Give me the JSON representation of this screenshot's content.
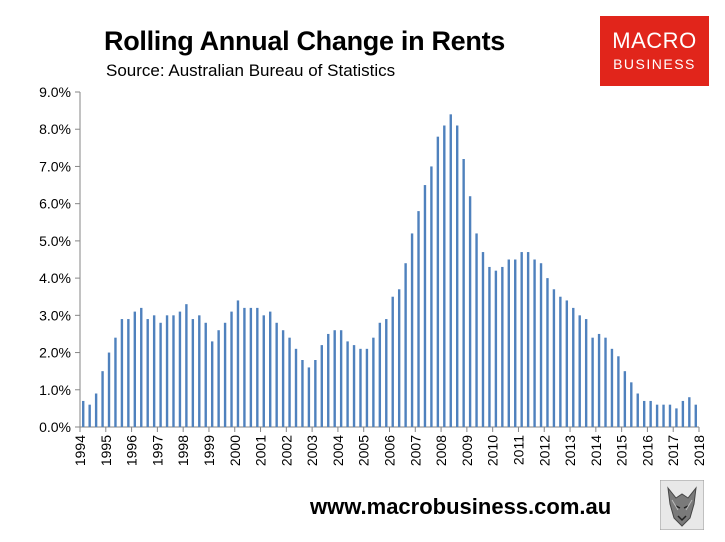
{
  "header": {
    "title": "Rolling Annual Change in Rents",
    "subtitle": "Source: Australian Bureau of Statistics"
  },
  "logo": {
    "line1": "MACRO",
    "line2": "BUSINESS"
  },
  "footer": {
    "url": "www.macrobusiness.com.au"
  },
  "colors": {
    "bar": "#4f81bd",
    "logo_bg": "#e1251b",
    "axis": "#868686"
  },
  "chart_data": {
    "type": "bar",
    "title": "Rolling Annual Change in Rents",
    "subtitle": "Source: Australian Bureau of Statistics",
    "ylim": [
      0,
      9
    ],
    "y_ticks": [
      "0.0%",
      "1.0%",
      "2.0%",
      "3.0%",
      "4.0%",
      "5.0%",
      "6.0%",
      "7.0%",
      "8.0%",
      "9.0%"
    ],
    "x_ticks": [
      "1994",
      "1995",
      "1996",
      "1997",
      "1998",
      "1999",
      "2000",
      "2001",
      "2002",
      "2003",
      "2004",
      "2005",
      "2006",
      "2007",
      "2008",
      "2009",
      "2010",
      "2011",
      "2012",
      "2013",
      "2014",
      "2015",
      "2016",
      "2017",
      "2018"
    ],
    "grid": false,
    "legend": "none",
    "start_year": 1994,
    "series": [
      {
        "name": "",
        "values": [
          0.7,
          0.6,
          0.9,
          1.5,
          2.0,
          2.4,
          2.9,
          2.9,
          3.1,
          3.2,
          2.9,
          3.0,
          2.8,
          3.0,
          3.0,
          3.1,
          3.3,
          2.9,
          3.0,
          2.8,
          2.3,
          2.6,
          2.8,
          3.1,
          3.4,
          3.2,
          3.2,
          3.2,
          3.0,
          3.1,
          2.8,
          2.6,
          2.4,
          2.1,
          1.8,
          1.6,
          1.8,
          2.2,
          2.5,
          2.6,
          2.6,
          2.3,
          2.2,
          2.1,
          2.1,
          2.4,
          2.8,
          2.9,
          3.5,
          3.7,
          4.4,
          5.2,
          5.8,
          6.5,
          7.0,
          7.8,
          8.1,
          8.4,
          8.1,
          7.2,
          6.2,
          5.2,
          4.7,
          4.3,
          4.2,
          4.3,
          4.5,
          4.5,
          4.7,
          4.7,
          4.5,
          4.4,
          4.0,
          3.7,
          3.5,
          3.4,
          3.2,
          3.0,
          2.9,
          2.4,
          2.5,
          2.4,
          2.1,
          1.9,
          1.5,
          1.2,
          0.9,
          0.7,
          0.7,
          0.6,
          0.6,
          0.6,
          0.5,
          0.7,
          0.8,
          0.6
        ]
      }
    ]
  }
}
